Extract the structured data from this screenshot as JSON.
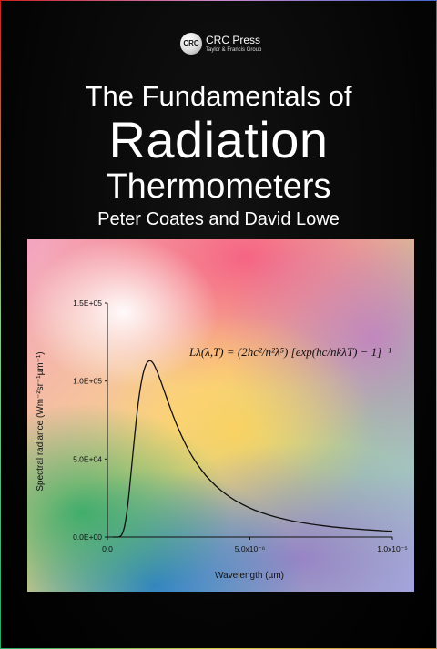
{
  "publisher": {
    "logo_text": "CRC",
    "name": "CRC Press",
    "group": "Taylor & Francis Group"
  },
  "title": {
    "line1": "The Fundamentals of",
    "line2": "Radiation",
    "line3": "Thermometers"
  },
  "authors": "Peter Coates and David Lowe",
  "equation": "Lλ(λ,T) = (2hc²/n²λ⁵) [exp(hc/nkλT) − 1]⁻¹",
  "chart_data": {
    "type": "line",
    "xlabel": "Wavelength (µm)",
    "ylabel": "Spectral radiance (Wm⁻²sr⁻¹µm⁻¹)",
    "x_ticks": [
      "0.0",
      "5.0x10⁻⁶",
      "1.0x10⁻⁵"
    ],
    "y_ticks": [
      "0.0E+00",
      "5.0E+04",
      "1.0E+05",
      "1.5E+05"
    ],
    "xlim": [
      0,
      1e-05
    ],
    "ylim": [
      0,
      150000
    ],
    "series": [
      {
        "x": [
          2e-07,
          3e-07,
          4e-07,
          5e-07,
          6e-07,
          7e-07,
          8e-07,
          9e-07,
          1e-06,
          1.1e-06,
          1.2e-06,
          1.3e-06,
          1.4e-06,
          1.5e-06,
          1.6e-06,
          1.7e-06,
          1.8e-06,
          1.9e-06,
          2e-06,
          2.2e-06,
          2.4e-06,
          2.6e-06,
          2.8e-06,
          3e-06,
          3.3e-06,
          3.6e-06,
          4e-06,
          4.5e-06,
          5e-06,
          5.5e-06,
          6e-06,
          6.5e-06,
          7e-06,
          7.5e-06,
          8e-06,
          8.5e-06,
          9e-06,
          9.5e-06,
          1e-05
        ],
        "y": [
          0,
          0,
          100,
          1400,
          6800,
          18500,
          35600,
          54800,
          73000,
          88500,
          100200,
          108000,
          112000,
          113000,
          111500,
          108000,
          103500,
          98500,
          93300,
          83000,
          73500,
          65000,
          57500,
          51000,
          43000,
          36500,
          29700,
          23300,
          18600,
          15100,
          12400,
          10300,
          8700,
          7400,
          6300,
          5500,
          4800,
          4200,
          3700
        ]
      }
    ]
  }
}
